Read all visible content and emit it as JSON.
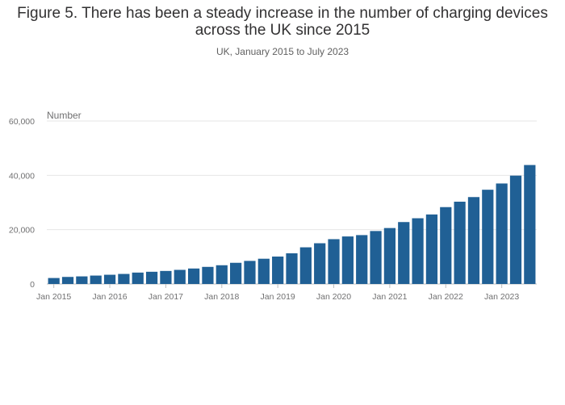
{
  "chart_data": {
    "type": "bar",
    "title": "Figure 5. There has been a steady increase in the number of charging devices across the UK since 2015",
    "subtitle": "UK, January 2015 to July 2023",
    "ylabel": "Number",
    "xlabel": "",
    "ylim": [
      0,
      60000
    ],
    "yticks": [
      0,
      20000,
      40000,
      60000
    ],
    "ytick_labels": [
      "0",
      "20,000",
      "40,000",
      "60,000"
    ],
    "xtick_labels": [
      "Jan 2015",
      "Jan 2016",
      "Jan 2017",
      "Jan 2018",
      "Jan 2019",
      "Jan 2020",
      "Jan 2021",
      "Jan 2022",
      "Jan 2023"
    ],
    "xtick_index": [
      0,
      4,
      8,
      12,
      16,
      20,
      24,
      28,
      32
    ],
    "grid": true,
    "bar_color": "#206095",
    "categories": [
      "Jan 2015",
      "Apr 2015",
      "Jul 2015",
      "Oct 2015",
      "Jan 2016",
      "Apr 2016",
      "Jul 2016",
      "Oct 2016",
      "Jan 2017",
      "Apr 2017",
      "Jul 2017",
      "Oct 2017",
      "Jan 2018",
      "Apr 2018",
      "Jul 2018",
      "Oct 2018",
      "Jan 2019",
      "Apr 2019",
      "Jul 2019",
      "Oct 2019",
      "Jan 2020",
      "Apr 2020",
      "Jul 2020",
      "Oct 2020",
      "Jan 2021",
      "Apr 2021",
      "Jul 2021",
      "Oct 2021",
      "Jan 2022",
      "Apr 2022",
      "Jul 2022",
      "Oct 2022",
      "Jan 2023",
      "Apr 2023",
      "Jul 2023"
    ],
    "values": [
      2200,
      2600,
      2800,
      3100,
      3400,
      3700,
      4200,
      4500,
      4800,
      5200,
      5700,
      6300,
      6900,
      7800,
      8500,
      9300,
      10100,
      11300,
      13500,
      15000,
      16500,
      17500,
      18000,
      19500,
      20600,
      22800,
      24200,
      25600,
      28300,
      30300,
      32000,
      34700,
      37000,
      39900,
      43800
    ]
  }
}
